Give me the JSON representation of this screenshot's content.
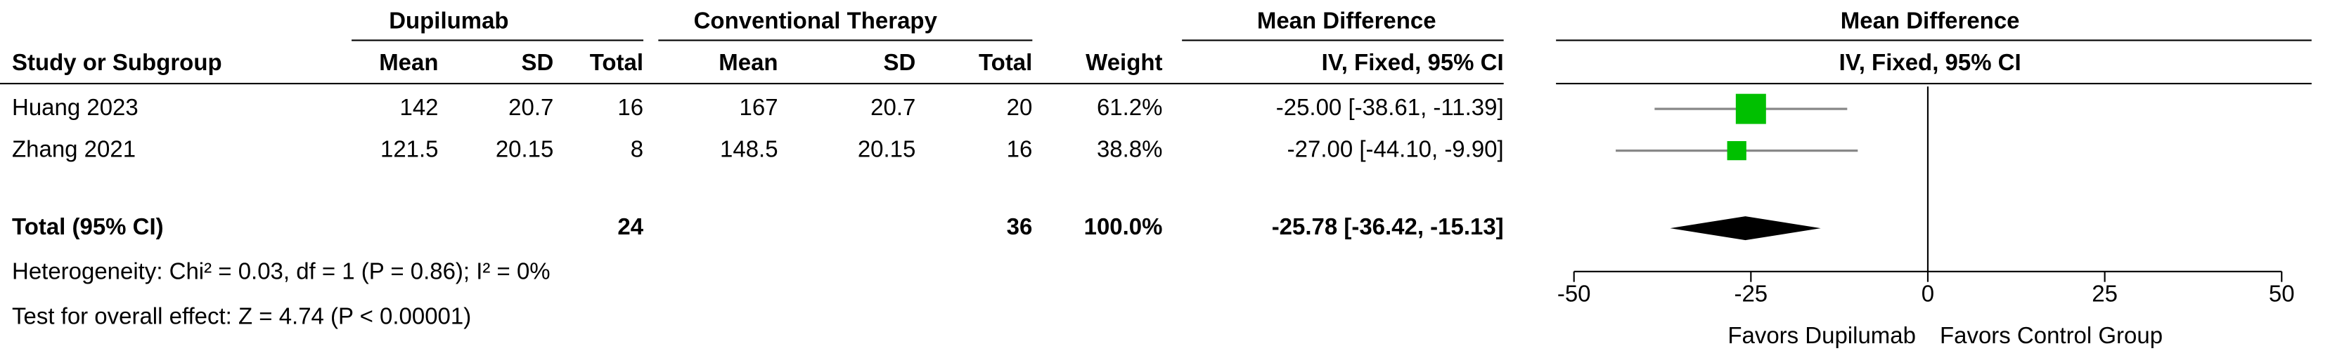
{
  "chart_data": {
    "type": "forest",
    "group_headers": [
      "Dupilumab",
      "Conventional Therapy",
      "Mean Difference",
      "Mean Difference"
    ],
    "columns": [
      "Study or Subgroup",
      "Mean",
      "SD",
      "Total",
      "Mean",
      "SD",
      "Total",
      "Weight",
      "IV, Fixed, 95% CI",
      "IV, Fixed, 95% CI"
    ],
    "rows": [
      {
        "study": "Huang 2023",
        "dupilumab": {
          "mean": 142,
          "sd": 20.7,
          "total": 16
        },
        "conventional": {
          "mean": 167,
          "sd": 20.7,
          "total": 20
        },
        "weight": {
          "value": 61.2,
          "label": "61.2%"
        },
        "md": -25,
        "ci_low": -38.61,
        "ci_high": -11.39,
        "md_label": "-25.00 [-38.61, -11.39]"
      },
      {
        "study": "Zhang 2021",
        "dupilumab": {
          "mean": 121.5,
          "sd": 20.15,
          "total": 8
        },
        "conventional": {
          "mean": 148.5,
          "sd": 20.15,
          "total": 16
        },
        "weight": {
          "value": 38.8,
          "label": "38.8%"
        },
        "md": -27,
        "ci_low": -44.1,
        "ci_high": -9.9,
        "md_label": "-27.00 [-44.10, -9.90]"
      }
    ],
    "total": {
      "label": "Total (95% CI)",
      "dupilumab_total": 24,
      "conventional_total": 36,
      "weight": {
        "value": 100,
        "label": "100.0%"
      },
      "md": -25.78,
      "ci_low": -36.42,
      "ci_high": -15.13,
      "md_label": "-25.78 [-36.42, -15.13]"
    },
    "heterogeneity": "Heterogeneity: Chi² = 0.03, df = 1 (P = 0.86); I² = 0%",
    "overall_effect": "Test for overall effect: Z = 4.74 (P < 0.00001)",
    "xlim": [
      -50,
      50
    ],
    "xticks": [
      -50,
      -25,
      0,
      25,
      50
    ],
    "favors_left": "Favors Dupilumab",
    "favors_right": "Favors Control Group",
    "square_color": "#00c000",
    "ci_color": "#888888",
    "diamond_color": "#000000"
  }
}
